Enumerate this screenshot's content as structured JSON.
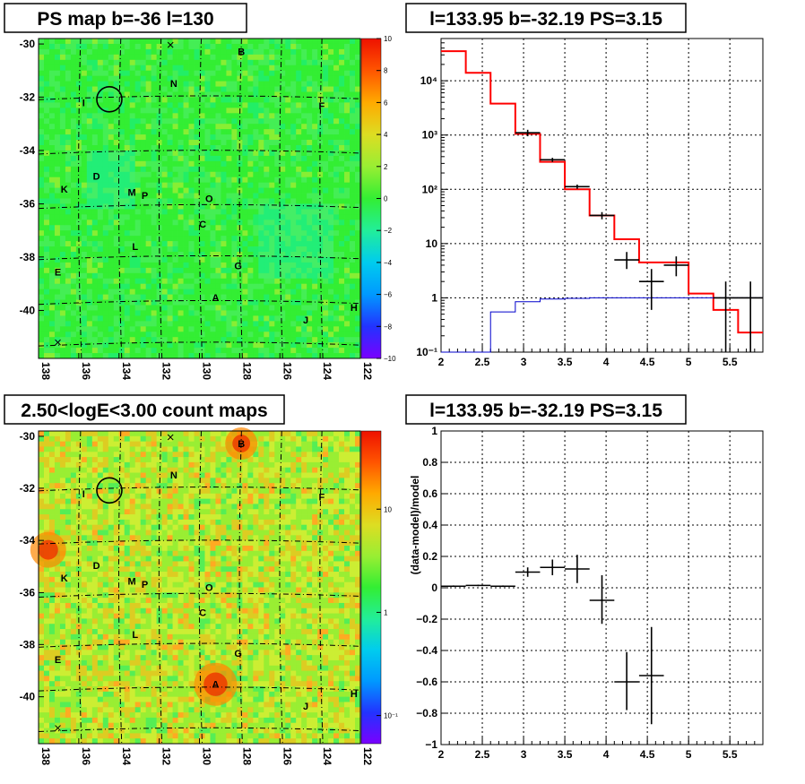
{
  "panels": {
    "map1": {
      "title": "PS map b=-36 l=130",
      "z_ticks": [
        "10",
        "8",
        "6",
        "4",
        "2",
        "0",
        "−2",
        "−4",
        "−6",
        "−8",
        "−10"
      ]
    },
    "spec": {
      "title": "l=133.95 b=-32.19 PS=3.15"
    },
    "map2": {
      "title": "2.50<logE<3.00 count maps",
      "z_ticks": [
        "10",
        "1",
        "10⁻¹"
      ]
    },
    "resid": {
      "title": "l=133.95 b=-32.19 PS=3.15"
    }
  },
  "map_axes": {
    "x_ticks": [
      "138",
      "136",
      "134",
      "132",
      "130",
      "128",
      "126",
      "124",
      "122"
    ],
    "y_ticks": [
      "-30",
      "-32",
      "-34",
      "-36",
      "-38",
      "-40"
    ]
  },
  "source_labels": [
    "B",
    "N",
    "I",
    "F",
    "D",
    "K",
    "M",
    "P",
    "O",
    "C",
    "L",
    "G",
    "E",
    "A",
    "J",
    "H"
  ],
  "colors": {
    "data": "#000000",
    "model": "#ff0000",
    "background_model": "#0000cc",
    "map_green": "#33ee33"
  },
  "chart_data": [
    {
      "type": "line",
      "title": "l=133.95 b=-32.19 PS=3.15",
      "xlabel": "",
      "ylabel": "",
      "xlim": [
        2,
        5.9
      ],
      "ylim": [
        0.1,
        60000
      ],
      "y_scale": "log",
      "x_ticks": [
        "2",
        "2.5",
        "3",
        "3.5",
        "4",
        "4.5",
        "5",
        "5.5"
      ],
      "y_ticks": [
        "10⁻¹",
        "1",
        "10",
        "10²",
        "10³",
        "10⁴"
      ],
      "grid": true,
      "series": [
        {
          "style": "step",
          "color": "#ff0000",
          "edges": [
            2.0,
            2.3,
            2.6,
            2.9,
            3.2,
            3.5,
            3.8,
            4.1,
            4.4,
            4.7,
            5.0,
            5.3,
            5.6,
            5.9
          ],
          "values": [
            35000,
            14000,
            3800,
            1050,
            320,
            100,
            33,
            12,
            4.5,
            4.5,
            1.2,
            0.6,
            0.23
          ]
        },
        {
          "style": "step",
          "color": "#0000cc",
          "edges": [
            2.0,
            2.3,
            2.6,
            2.9,
            3.2,
            3.5,
            3.8,
            4.1,
            4.4,
            4.7,
            5.0,
            5.3,
            5.6,
            5.9
          ],
          "values": [
            0.06,
            0.1,
            0.55,
            0.85,
            0.95,
            0.98,
            1.0,
            1.0,
            1.0,
            1.0,
            1.0,
            1.0,
            1.0
          ]
        },
        {
          "style": "errorbar",
          "color": "#000000",
          "x": [
            3.05,
            3.35,
            3.65,
            3.95,
            4.25,
            4.55,
            4.85,
            5.45,
            5.75
          ],
          "xerr": 0.15,
          "y": [
            1100,
            350,
            112,
            33,
            5.0,
            2.0,
            4.0,
            1.0,
            1.0
          ],
          "ylo": [
            950,
            320,
            102,
            28,
            3.4,
            0.6,
            2.5,
            0.1,
            0.1
          ],
          "yhi": [
            1250,
            380,
            122,
            38,
            7.0,
            3.4,
            5.8,
            2.0,
            2.0
          ]
        }
      ]
    },
    {
      "type": "scatter",
      "title": "l=133.95 b=-32.19 PS=3.15",
      "xlabel": "",
      "ylabel": "(data-model)/model",
      "xlim": [
        2,
        5.9
      ],
      "ylim": [
        -1,
        1
      ],
      "x_ticks": [
        "2",
        "2.5",
        "3",
        "3.5",
        "4",
        "4.5",
        "5",
        "5.5"
      ],
      "y_ticks": [
        "−1",
        "−0.8",
        "−0.6",
        "−0.4",
        "−0.2",
        "0",
        "0.2",
        "0.4",
        "0.6",
        "0.8",
        "1"
      ],
      "grid": true,
      "series": [
        {
          "style": "errorbar",
          "color": "#000000",
          "x": [
            2.15,
            2.45,
            2.75,
            3.05,
            3.35,
            3.65,
            3.95,
            4.25,
            4.55
          ],
          "xerr": 0.15,
          "y": [
            0.01,
            0.015,
            0.01,
            0.1,
            0.13,
            0.12,
            -0.08,
            -0.6,
            -0.56
          ],
          "ylo": [
            0.005,
            0.01,
            0.005,
            0.07,
            0.08,
            0.03,
            -0.23,
            -0.78,
            -0.87
          ],
          "yhi": [
            0.015,
            0.02,
            0.015,
            0.13,
            0.18,
            0.21,
            0.08,
            -0.41,
            -0.25
          ]
        }
      ]
    }
  ]
}
